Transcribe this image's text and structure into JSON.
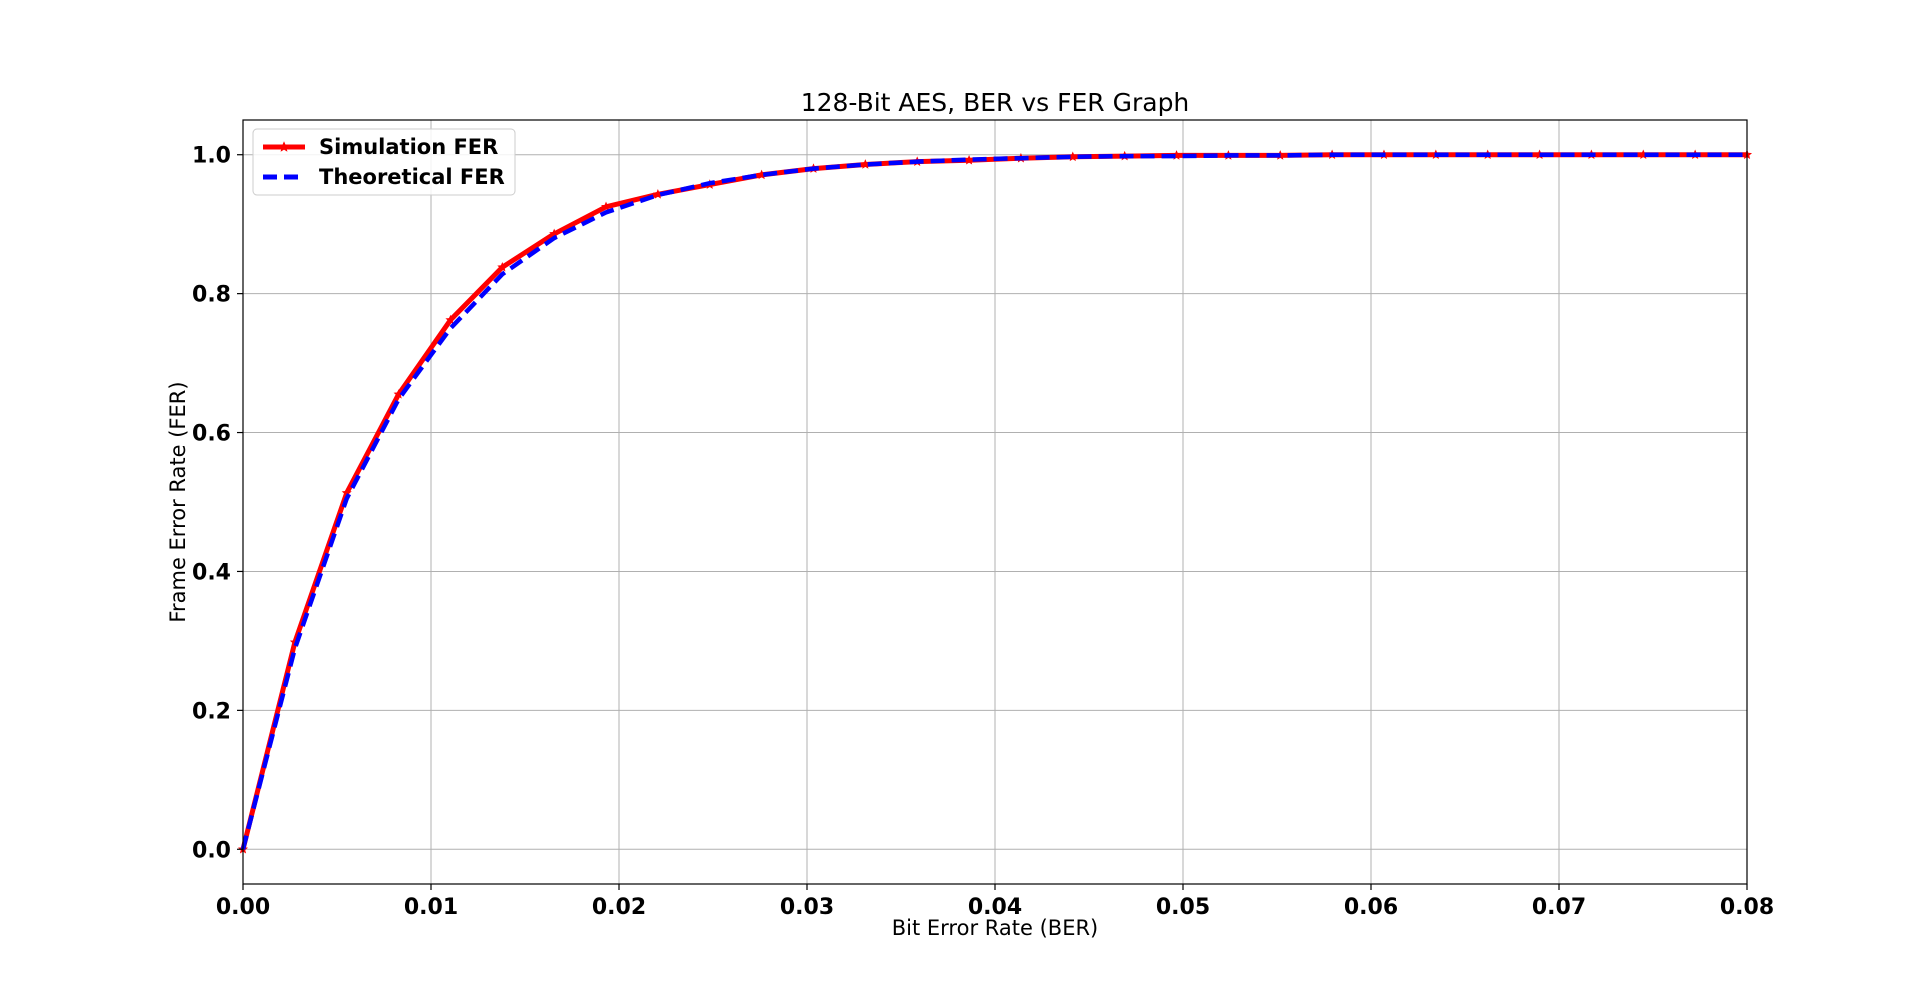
{
  "chart_data": {
    "type": "line",
    "title": "128-Bit AES, BER vs FER Graph",
    "xlabel": "Bit Error Rate (BER)",
    "ylabel": "Frame Error Rate (FER)",
    "xlim": [
      0,
      0.08
    ],
    "ylim": [
      -0.05,
      1.05
    ],
    "xticks": [
      0.0,
      0.01,
      0.02,
      0.03,
      0.04,
      0.05,
      0.06,
      0.07,
      0.08
    ],
    "xtick_labels": [
      "0.00",
      "0.01",
      "0.02",
      "0.03",
      "0.04",
      "0.05",
      "0.06",
      "0.07",
      "0.08"
    ],
    "yticks": [
      0.0,
      0.2,
      0.4,
      0.6,
      0.8,
      1.0
    ],
    "ytick_labels": [
      "0.0",
      "0.2",
      "0.4",
      "0.6",
      "0.8",
      "1.0"
    ],
    "grid": true,
    "legend_position": "top-left",
    "x": [
      0.0,
      0.0027586,
      0.0055172,
      0.0082759,
      0.0110345,
      0.0137931,
      0.0165517,
      0.0193103,
      0.022069,
      0.0248276,
      0.0275862,
      0.0303448,
      0.0331034,
      0.0358621,
      0.0386207,
      0.0413793,
      0.0441379,
      0.0468966,
      0.0496552,
      0.0524138,
      0.0551724,
      0.057931,
      0.0606897,
      0.0634483,
      0.0662069,
      0.0689655,
      0.0717241,
      0.0744828,
      0.0772414,
      0.08
    ],
    "series": [
      {
        "name": "Simulation FER",
        "color": "#ff0000",
        "style": "solid",
        "marker": "star",
        "values": [
          0.0,
          0.298,
          0.513,
          0.655,
          0.762,
          0.838,
          0.886,
          0.925,
          0.943,
          0.957,
          0.971,
          0.98,
          0.986,
          0.99,
          0.992,
          0.995,
          0.997,
          0.998,
          0.999,
          0.999,
          0.999,
          1.0,
          1.0,
          1.0,
          1.0,
          1.0,
          1.0,
          1.0,
          1.0,
          1.0
        ]
      },
      {
        "name": "Theoretical FER",
        "color": "#0000ff",
        "style": "dashed",
        "marker": "none",
        "values": [
          0.0,
          0.289,
          0.505,
          0.648,
          0.75,
          0.828,
          0.88,
          0.917,
          0.942,
          0.959,
          0.971,
          0.98,
          0.986,
          0.99,
          0.993,
          0.995,
          0.997,
          0.998,
          0.998,
          0.999,
          0.999,
          1.0,
          1.0,
          1.0,
          1.0,
          1.0,
          1.0,
          1.0,
          1.0,
          1.0
        ]
      }
    ]
  }
}
